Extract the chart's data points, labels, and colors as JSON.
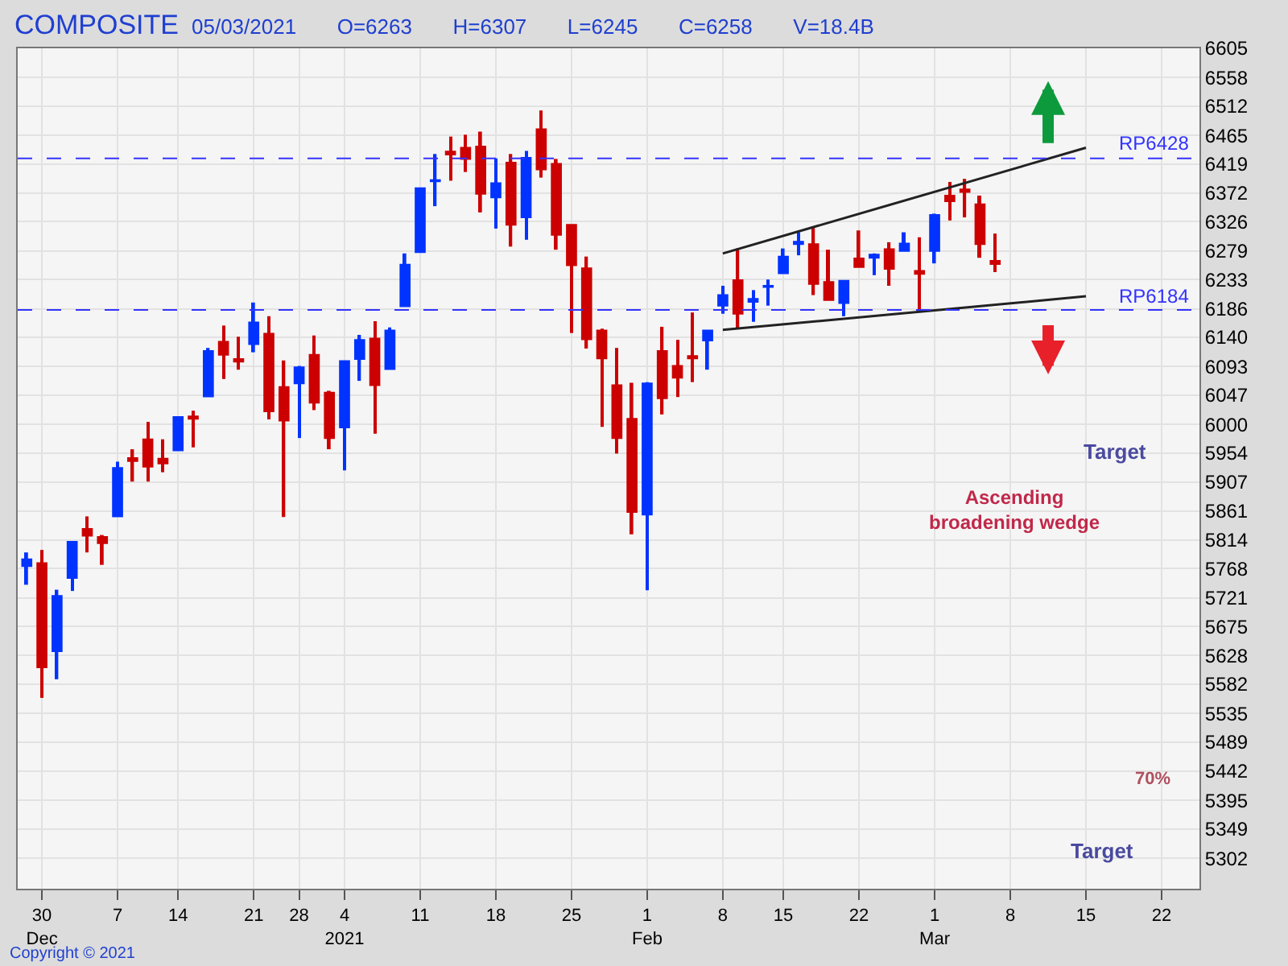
{
  "chart_data": {
    "type": "candlestick",
    "title": "COMPOSITE",
    "subtitle": "05/03/2021    O=6263    H=6307    L=6245    C=6258    V=18.4B",
    "categories": [
      null,
      "30\nDec",
      null,
      null,
      null,
      null,
      "7",
      null,
      null,
      null,
      "14",
      null,
      null,
      null,
      null,
      "21",
      null,
      null,
      "28",
      null,
      null,
      "4\n2021",
      null,
      null,
      null,
      null,
      "11",
      null,
      null,
      null,
      null,
      "18",
      null,
      null,
      null,
      null,
      "25",
      null,
      null,
      null,
      null,
      "1\nFeb",
      null,
      null,
      null,
      null,
      "8",
      null,
      null,
      null,
      "15",
      null,
      null,
      null,
      null,
      "22",
      null,
      null,
      null,
      null,
      "1\nMar",
      null,
      null,
      null,
      null,
      "8",
      null,
      null,
      null,
      null,
      "15",
      null,
      null,
      null,
      null,
      "22",
      null,
      null
    ],
    "ohlc": [
      [
        5772,
        5794,
        5742,
        5783
      ],
      [
        5777,
        5798,
        5560,
        5609
      ],
      [
        5635,
        5734,
        5590,
        5724
      ],
      [
        5753,
        5811,
        5732,
        5811
      ],
      [
        5832,
        5852,
        5794,
        5821
      ],
      [
        5819,
        5822,
        5774,
        5809
      ],
      [
        5852,
        5940,
        5852,
        5930
      ],
      [
        5946,
        5960,
        5908,
        5941
      ],
      [
        5976,
        6004,
        5908,
        5932
      ],
      [
        5945,
        5976,
        5923,
        5937
      ],
      [
        5958,
        6012,
        5958,
        6012
      ],
      [
        6013,
        6022,
        5963,
        6009
      ],
      [
        6045,
        6123,
        6045,
        6118
      ],
      [
        6133,
        6159,
        6073,
        6112
      ],
      [
        6105,
        6141,
        6088,
        6101
      ],
      [
        6129,
        6196,
        6116,
        6164
      ],
      [
        6146,
        6174,
        6008,
        6021
      ],
      [
        6060,
        6103,
        5851,
        6006
      ],
      [
        6066,
        6094,
        5978,
        6092
      ],
      [
        6112,
        6143,
        6023,
        6035
      ],
      [
        6051,
        6054,
        5960,
        5978
      ],
      [
        5995,
        6102,
        5926,
        6102
      ],
      [
        6105,
        6144,
        6070,
        6136
      ],
      [
        6138,
        6166,
        5985,
        6063
      ],
      [
        6089,
        6156,
        6089,
        6151
      ],
      [
        6190,
        6275,
        6190,
        6257
      ],
      [
        6277,
        6380,
        6277,
        6380
      ],
      [
        6391,
        6435,
        6351,
        6393
      ],
      [
        6439,
        6463,
        6392,
        6434
      ],
      [
        6445,
        6466,
        6406,
        6427
      ],
      [
        6447,
        6471,
        6341,
        6371
      ],
      [
        6365,
        6428,
        6315,
        6388
      ],
      [
        6421,
        6435,
        6286,
        6321
      ],
      [
        6333,
        6440,
        6297,
        6429
      ],
      [
        6475,
        6505,
        6397,
        6410
      ],
      [
        6419,
        6427,
        6281,
        6305
      ],
      [
        6321,
        6321,
        6147,
        6256
      ],
      [
        6251,
        6270,
        6122,
        6137
      ],
      [
        6151,
        6154,
        5996,
        6106
      ],
      [
        6063,
        6123,
        5953,
        5978
      ],
      [
        6009,
        6067,
        5823,
        5859
      ],
      [
        5855,
        6068,
        5733,
        6066
      ],
      [
        6118,
        6157,
        6016,
        6042
      ],
      [
        6094,
        6136,
        6044,
        6075
      ],
      [
        6110,
        6180,
        6068,
        6106
      ],
      [
        6135,
        6151,
        6088,
        6151
      ],
      [
        6191,
        6223,
        6178,
        6208
      ],
      [
        6232,
        6283,
        6154,
        6178
      ],
      [
        6197,
        6216,
        6165,
        6202
      ],
      [
        6221,
        6233,
        6191,
        6223
      ],
      [
        6243,
        6283,
        6243,
        6270
      ],
      [
        6290,
        6309,
        6272,
        6294
      ],
      [
        6290,
        6316,
        6208,
        6226
      ],
      [
        6229,
        6281,
        6200,
        6200
      ],
      [
        6195,
        6231,
        6174,
        6231
      ],
      [
        6267,
        6312,
        6253,
        6253
      ],
      [
        6268,
        6275,
        6240,
        6273
      ],
      [
        6282,
        6293,
        6223,
        6250
      ],
      [
        6279,
        6309,
        6279,
        6291
      ],
      [
        6247,
        6301,
        6183,
        6242
      ],
      [
        6279,
        6339,
        6259,
        6337
      ],
      [
        6368,
        6390,
        6328,
        6359
      ],
      [
        6378,
        6395,
        6333,
        6374
      ],
      [
        6354,
        6368,
        6268,
        6290
      ],
      [
        6263,
        6307,
        6245,
        6258
      ],
      null,
      null,
      null,
      null,
      null,
      null,
      null,
      null,
      null,
      null,
      null,
      null,
      null
    ],
    "colors": [
      "#0033ff",
      "#cc0000",
      "#0033ff",
      "#0033ff",
      "#cc0000",
      "#cc0000",
      "#0033ff",
      "#cc0000",
      "#cc0000",
      "#cc0000",
      "#0033ff",
      "#cc0000",
      "#0033ff",
      "#cc0000",
      "#cc0000",
      "#0033ff",
      "#cc0000",
      "#cc0000",
      "#0033ff",
      "#cc0000",
      "#cc0000",
      "#0033ff",
      "#0033ff",
      "#cc0000",
      "#0033ff",
      "#0033ff",
      "#0033ff",
      "#0033ff",
      "#cc0000",
      "#cc0000",
      "#cc0000",
      "#0033ff",
      "#cc0000",
      "#0033ff",
      "#cc0000",
      "#cc0000",
      "#cc0000",
      "#cc0000",
      "#cc0000",
      "#cc0000",
      "#cc0000",
      "#0033ff",
      "#cc0000",
      "#cc0000",
      "#cc0000",
      "#0033ff",
      "#0033ff",
      "#cc0000",
      "#0033ff",
      "#0033ff",
      "#0033ff",
      "#0033ff",
      "#cc0000",
      "#cc0000",
      "#0033ff",
      "#cc0000",
      "#0033ff",
      "#cc0000",
      "#0033ff",
      "#cc0000",
      "#0033ff",
      "#cc0000",
      "#cc0000",
      "#cc0000",
      "#cc0000",
      null,
      null,
      null,
      null,
      null,
      null,
      null,
      null,
      null,
      null,
      null,
      null,
      null
    ],
    "series": [
      {
        "type": "line",
        "color": "#222222",
        "values": [
          null,
          null,
          null,
          null,
          null,
          null,
          null,
          null,
          null,
          null,
          null,
          null,
          null,
          null,
          null,
          null,
          null,
          null,
          null,
          null,
          null,
          null,
          null,
          null,
          null,
          null,
          null,
          null,
          null,
          null,
          null,
          null,
          null,
          null,
          null,
          null,
          null,
          null,
          null,
          null,
          null,
          null,
          null,
          null,
          null,
          null,
          6275,
          null,
          null,
          null,
          null,
          null,
          null,
          null,
          null,
          null,
          null,
          null,
          null,
          null,
          null,
          null,
          null,
          null,
          null,
          null,
          null,
          null,
          null,
          null,
          6445,
          null,
          null,
          null,
          null,
          null,
          null,
          null
        ]
      },
      {
        "type": "line",
        "color": "#222222",
        "values": [
          null,
          null,
          null,
          null,
          null,
          null,
          null,
          null,
          null,
          null,
          null,
          null,
          null,
          null,
          null,
          null,
          null,
          null,
          null,
          null,
          null,
          null,
          null,
          null,
          null,
          null,
          null,
          null,
          null,
          null,
          null,
          null,
          null,
          null,
          null,
          null,
          null,
          null,
          null,
          null,
          null,
          null,
          null,
          null,
          null,
          null,
          6152,
          null,
          null,
          null,
          null,
          null,
          null,
          null,
          null,
          null,
          null,
          null,
          null,
          null,
          null,
          null,
          null,
          null,
          null,
          null,
          null,
          null,
          null,
          null,
          6206,
          null,
          null,
          null,
          null,
          null,
          null,
          null
        ]
      }
    ],
    "ylim": [
      5253,
      6605
    ],
    "yticks": [
      5302,
      5349,
      5395,
      5442,
      5489,
      5535,
      5582,
      5628,
      5675,
      5721,
      5768,
      5814,
      5861,
      5907,
      5954,
      6000,
      6047,
      6093,
      6140,
      6186,
      6233,
      6279,
      6326,
      6372,
      6419,
      6465,
      6512,
      6558,
      6605
    ],
    "ref_lines": [
      {
        "axis": "y",
        "value": 6428,
        "label": "RP6428",
        "color": "#3333ff",
        "line_style": "dashed"
      },
      {
        "axis": "y",
        "value": 6184,
        "label": "RP6184",
        "color": "#3333ff",
        "line_style": "dashed"
      }
    ],
    "annotations": [
      "Target",
      "Ascending\nbroadening wedge",
      "70%",
      "Target",
      "Copyright © 2021"
    ],
    "grid": true
  }
}
